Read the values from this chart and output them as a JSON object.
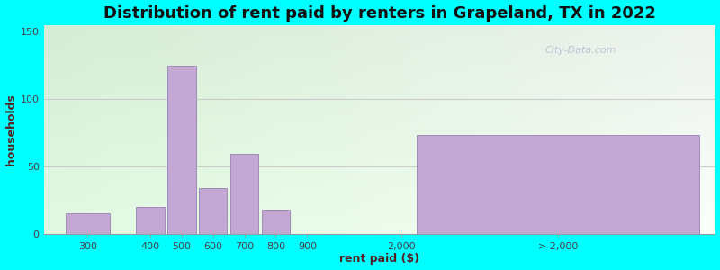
{
  "title": "Distribution of rent paid by renters in Grapeland, TX in 2022",
  "xlabel": "rent paid ($)",
  "ylabel": "households",
  "background_color": "#00FFFF",
  "bar_color": "#c4a8d4",
  "bar_edge_color": "#a08ab8",
  "categories": [
    "300",
    "400",
    "500",
    "600",
    "700",
    "800",
    "900",
    "2,000",
    "> 2,000"
  ],
  "values": [
    15,
    20,
    125,
    34,
    59,
    18,
    0,
    0,
    73
  ],
  "yticks": [
    0,
    50,
    100,
    150
  ],
  "ylim": [
    0,
    155
  ],
  "watermark": "City-Data.com",
  "title_fontsize": 13,
  "axis_label_fontsize": 9,
  "tick_fontsize": 8,
  "bar_positions": [
    0.5,
    1.5,
    2.0,
    2.5,
    3.0,
    3.5,
    4.0,
    5.5,
    8.0
  ],
  "bar_widths": [
    0.7,
    0.45,
    0.45,
    0.45,
    0.45,
    0.45,
    0.45,
    0.45,
    4.5
  ],
  "xlim": [
    -0.2,
    10.5
  ],
  "tick_positions": [
    0.5,
    1.5,
    2.0,
    2.5,
    3.0,
    3.5,
    4.0,
    5.5,
    8.0
  ]
}
